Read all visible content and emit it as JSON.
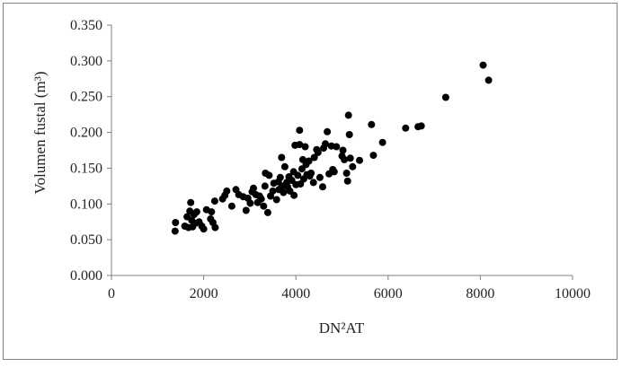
{
  "chart_data": {
    "type": "scatter",
    "title": "",
    "xlabel": "DN²AT",
    "ylabel": "Volumen fustal (m³)",
    "xlim": [
      0,
      10000
    ],
    "ylim": [
      0,
      0.35
    ],
    "xticks": [
      0,
      2000,
      4000,
      6000,
      8000,
      10000
    ],
    "yticks": [
      "0.000",
      "0.050",
      "0.100",
      "0.150",
      "0.200",
      "0.250",
      "0.300",
      "0.350"
    ],
    "grid": false,
    "legend": "none",
    "marker_color": "#000000",
    "series": [
      {
        "points": [
          [
            1380,
            0.062
          ],
          [
            1390,
            0.074
          ],
          [
            1590,
            0.069
          ],
          [
            1640,
            0.082
          ],
          [
            1670,
            0.067
          ],
          [
            1700,
            0.09
          ],
          [
            1720,
            0.102
          ],
          [
            1740,
            0.077
          ],
          [
            1760,
            0.068
          ],
          [
            1790,
            0.085
          ],
          [
            1820,
            0.073
          ],
          [
            1850,
            0.089
          ],
          [
            1900,
            0.075
          ],
          [
            1960,
            0.069
          ],
          [
            2000,
            0.065
          ],
          [
            2060,
            0.092
          ],
          [
            2150,
            0.079
          ],
          [
            2170,
            0.089
          ],
          [
            2200,
            0.074
          ],
          [
            2250,
            0.067
          ],
          [
            2240,
            0.104
          ],
          [
            2410,
            0.107
          ],
          [
            2460,
            0.112
          ],
          [
            2500,
            0.118
          ],
          [
            2610,
            0.097
          ],
          [
            2700,
            0.12
          ],
          [
            2760,
            0.113
          ],
          [
            2860,
            0.11
          ],
          [
            2920,
            0.091
          ],
          [
            2960,
            0.108
          ],
          [
            3010,
            0.101
          ],
          [
            3050,
            0.117
          ],
          [
            3080,
            0.122
          ],
          [
            3130,
            0.113
          ],
          [
            3170,
            0.102
          ],
          [
            3210,
            0.111
          ],
          [
            3250,
            0.107
          ],
          [
            3300,
            0.097
          ],
          [
            3330,
            0.125
          ],
          [
            3340,
            0.143
          ],
          [
            3390,
            0.088
          ],
          [
            3420,
            0.14
          ],
          [
            3450,
            0.111
          ],
          [
            3500,
            0.118
          ],
          [
            3520,
            0.129
          ],
          [
            3580,
            0.106
          ],
          [
            3620,
            0.131
          ],
          [
            3630,
            0.12
          ],
          [
            3660,
            0.137
          ],
          [
            3690,
            0.165
          ],
          [
            3700,
            0.125
          ],
          [
            3730,
            0.116
          ],
          [
            3760,
            0.152
          ],
          [
            3800,
            0.13
          ],
          [
            3820,
            0.124
          ],
          [
            3850,
            0.138
          ],
          [
            3870,
            0.118
          ],
          [
            3910,
            0.133
          ],
          [
            3950,
            0.145
          ],
          [
            3960,
            0.112
          ],
          [
            3980,
            0.182
          ],
          [
            4000,
            0.127
          ],
          [
            4040,
            0.14
          ],
          [
            4080,
            0.203
          ],
          [
            4080,
            0.183
          ],
          [
            4100,
            0.128
          ],
          [
            4130,
            0.149
          ],
          [
            4150,
            0.162
          ],
          [
            4170,
            0.135
          ],
          [
            4200,
            0.18
          ],
          [
            4220,
            0.155
          ],
          [
            4240,
            0.141
          ],
          [
            4280,
            0.16
          ],
          [
            4300,
            0.139
          ],
          [
            4330,
            0.143
          ],
          [
            4380,
            0.13
          ],
          [
            4400,
            0.165
          ],
          [
            4450,
            0.176
          ],
          [
            4480,
            0.172
          ],
          [
            4520,
            0.137
          ],
          [
            4580,
            0.124
          ],
          [
            4600,
            0.178
          ],
          [
            4640,
            0.184
          ],
          [
            4680,
            0.201
          ],
          [
            4720,
            0.142
          ],
          [
            4770,
            0.181
          ],
          [
            4800,
            0.148
          ],
          [
            4830,
            0.145
          ],
          [
            4880,
            0.18
          ],
          [
            5000,
            0.167
          ],
          [
            5020,
            0.175
          ],
          [
            5050,
            0.162
          ],
          [
            5100,
            0.143
          ],
          [
            5120,
            0.132
          ],
          [
            5140,
            0.224
          ],
          [
            5160,
            0.197
          ],
          [
            5180,
            0.164
          ],
          [
            5230,
            0.152
          ],
          [
            5380,
            0.161
          ],
          [
            5640,
            0.211
          ],
          [
            5680,
            0.168
          ],
          [
            5880,
            0.186
          ],
          [
            6380,
            0.206
          ],
          [
            6650,
            0.208
          ],
          [
            6720,
            0.209
          ],
          [
            7250,
            0.249
          ],
          [
            8060,
            0.294
          ],
          [
            8180,
            0.273
          ]
        ]
      }
    ]
  }
}
